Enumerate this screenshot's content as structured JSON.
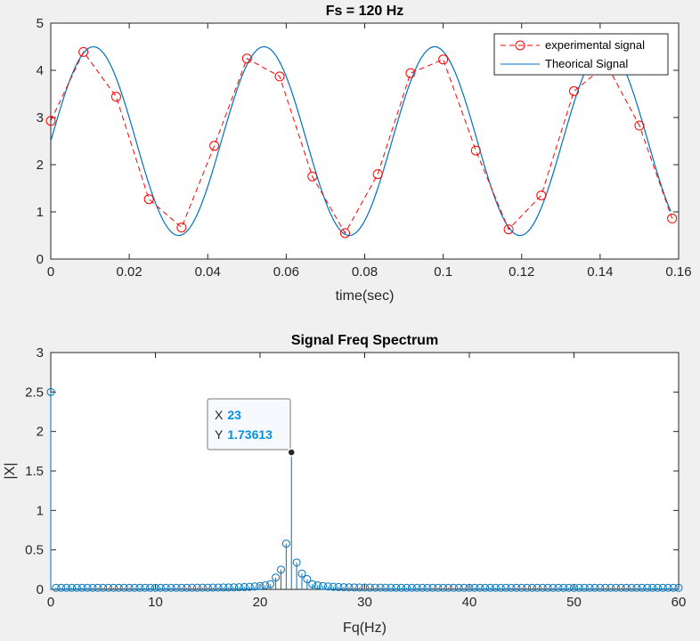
{
  "chart_data": [
    {
      "type": "line",
      "title": "Fs = 120 Hz",
      "xlabel": "time(sec)",
      "ylabel": "",
      "xlim": [
        0,
        0.16
      ],
      "ylim": [
        0,
        5
      ],
      "xticks": [
        "0",
        "0.02",
        "0.04",
        "0.06",
        "0.08",
        "0.1",
        "0.12",
        "0.14",
        "0.16"
      ],
      "yticks": [
        "0",
        "1",
        "2",
        "3",
        "4",
        "5"
      ],
      "legend": "top-right",
      "series": [
        {
          "name": "experimental signal",
          "style": "dashed-circles",
          "color": "#ff0000",
          "x": [
            0,
            0.00833,
            0.01667,
            0.025,
            0.03333,
            0.04167,
            0.05,
            0.05833,
            0.06667,
            0.075,
            0.08333,
            0.09167,
            0.1,
            0.10833,
            0.11667,
            0.125,
            0.13333,
            0.14167,
            0.15,
            0.15833
          ],
          "y": [
            2.93,
            4.39,
            3.44,
            1.27,
            0.67,
            2.4,
            4.25,
            3.87,
            1.75,
            0.55,
            1.8,
            3.94,
            4.23,
            2.3,
            0.63,
            1.35,
            3.56,
            4.12,
            2.83,
            0.86
          ]
        },
        {
          "name": "Theorical Signal",
          "style": "solid",
          "color": "#0072bd",
          "function": {
            "offset": 2.5,
            "amplitude": 2.0,
            "frequency_hz": 23,
            "phase_rad": 0.0
          },
          "x_range": [
            0,
            0.158
          ]
        }
      ]
    },
    {
      "type": "stem",
      "title": "Signal Freq Spectrum",
      "xlabel": "Fq(Hz)",
      "ylabel": "|X|",
      "xlim": [
        0,
        60
      ],
      "ylim": [
        0,
        3
      ],
      "xticks": [
        "0",
        "10",
        "20",
        "30",
        "40",
        "50",
        "60"
      ],
      "yticks": [
        "0",
        "0.5",
        "1",
        "1.5",
        "2",
        "2.5",
        "3"
      ],
      "color": "#0072bd",
      "peaks": [
        {
          "x": 0,
          "y": 2.5
        },
        {
          "x": 21.5,
          "y": 0.15
        },
        {
          "x": 22.0,
          "y": 0.25
        },
        {
          "x": 22.5,
          "y": 0.58
        },
        {
          "x": 23,
          "y": 1.73613
        },
        {
          "x": 23.5,
          "y": 0.34
        },
        {
          "x": 24.0,
          "y": 0.2
        },
        {
          "x": 24.5,
          "y": 0.13
        }
      ],
      "datatip": {
        "x_label": "X",
        "x_value": "23",
        "y_label": "Y",
        "y_value": "1.73613"
      }
    }
  ]
}
